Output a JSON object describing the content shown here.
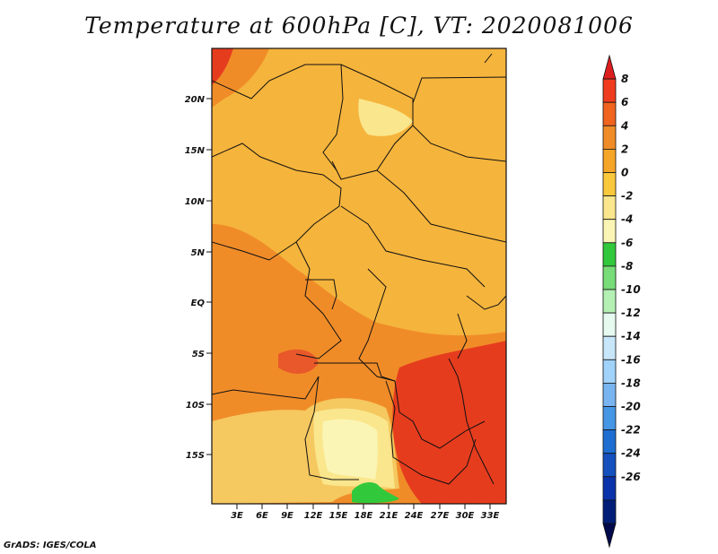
{
  "title": "Temperature at 600hPa [C], VT: 2020081006",
  "credit": "GrADS: IGES/COLA",
  "map": {
    "lat_labels": [
      "20N",
      "15N",
      "10N",
      "5N",
      "EQ",
      "5S",
      "10S",
      "15S"
    ],
    "lon_labels": [
      "3E",
      "6E",
      "9E",
      "12E",
      "15E",
      "18E",
      "21E",
      "24E",
      "27E",
      "30E",
      "33E"
    ]
  },
  "colorbar": {
    "labels": [
      "8",
      "6",
      "4",
      "2",
      "0",
      "-2",
      "-4",
      "-6",
      "-8",
      "-10",
      "-12",
      "-14",
      "-16",
      "-18",
      "-20",
      "-22",
      "-24",
      "-26"
    ],
    "colors": [
      "#dc1e1e",
      "#f03c1e",
      "#f0641e",
      "#f08c28",
      "#f5a528",
      "#fac83c",
      "#fae68c",
      "#faf5b4",
      "#32c83c",
      "#78dc78",
      "#b4f0b4",
      "#e6faf0",
      "#c8e6fa",
      "#a0d2fa",
      "#78b4f0",
      "#4696e6",
      "#1e6ed2",
      "#1450be",
      "#0a32aa",
      "#001e78",
      "#000a4b"
    ]
  },
  "colors": {
    "warm_dark": "#e63c1e",
    "warm_mid": "#f08c28",
    "warm_light": "#f5b43c",
    "pale": "#fae68c",
    "cream": "#faf5b4",
    "green": "#32c83c",
    "border": "#111111"
  }
}
